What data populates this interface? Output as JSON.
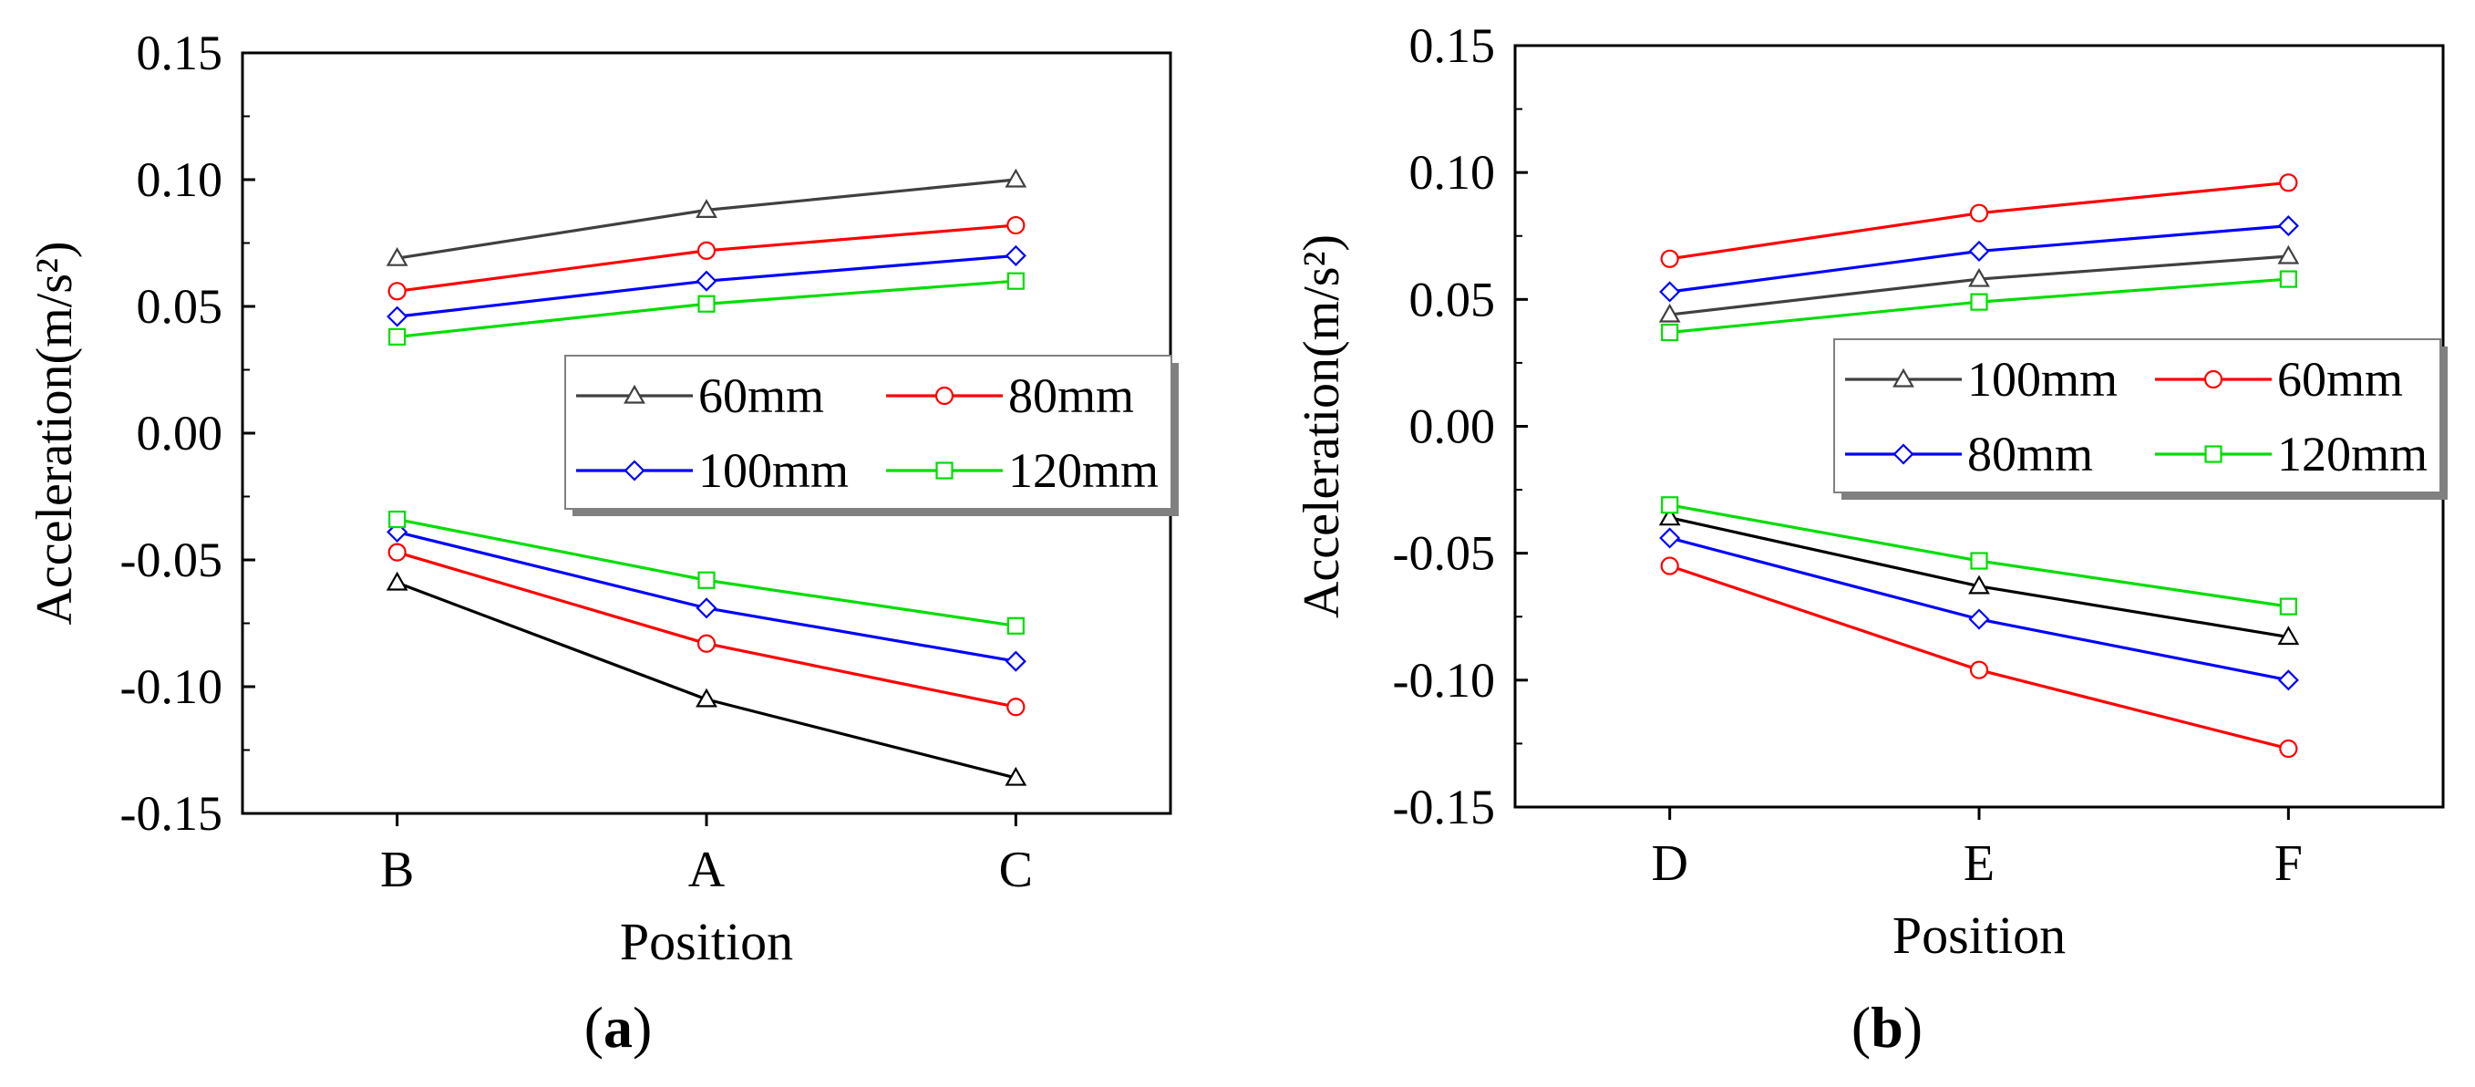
{
  "chart_data": [
    {
      "panel": "a",
      "caption_label": "a",
      "type": "line",
      "xlabel": "Position",
      "ylabel": "Acceleration(m/s²)",
      "categories": [
        "B",
        "A",
        "C"
      ],
      "ylim": [
        -0.15,
        0.15
      ],
      "yticks": [
        "0.15",
        "0.10",
        "0.05",
        "0.00",
        "-0.05",
        "-0.10",
        "-0.15"
      ],
      "legend_position": "center-right",
      "legend_order": [
        "60mm",
        "80mm",
        "100mm",
        "120mm"
      ],
      "series": [
        {
          "name": "60mm",
          "group": "positive",
          "color": "#404040",
          "marker": "triangle",
          "values": [
            0.069,
            0.088,
            0.1
          ]
        },
        {
          "name": "80mm",
          "group": "positive",
          "color": "#ff0000",
          "marker": "circle",
          "values": [
            0.056,
            0.072,
            0.082
          ]
        },
        {
          "name": "100mm",
          "group": "positive",
          "color": "#0000ff",
          "marker": "diamond",
          "values": [
            0.046,
            0.06,
            0.07
          ]
        },
        {
          "name": "120mm",
          "group": "positive",
          "color": "#00dd00",
          "marker": "square",
          "values": [
            0.038,
            0.051,
            0.06
          ]
        },
        {
          "name": "60mm",
          "group": "negative",
          "color": "#000000",
          "marker": "triangle",
          "values": [
            -0.059,
            -0.105,
            -0.136
          ]
        },
        {
          "name": "80mm",
          "group": "negative",
          "color": "#ff0000",
          "marker": "circle",
          "values": [
            -0.047,
            -0.083,
            -0.108
          ]
        },
        {
          "name": "100mm",
          "group": "negative",
          "color": "#0000ff",
          "marker": "diamond",
          "values": [
            -0.039,
            -0.069,
            -0.09
          ]
        },
        {
          "name": "120mm",
          "group": "negative",
          "color": "#00dd00",
          "marker": "square",
          "values": [
            -0.034,
            -0.058,
            -0.076
          ]
        }
      ]
    },
    {
      "panel": "b",
      "caption_label": "b",
      "type": "line",
      "xlabel": "Position",
      "ylabel": "Acceleration(m/s²)",
      "categories": [
        "D",
        "E",
        "F"
      ],
      "ylim": [
        -0.15,
        0.15
      ],
      "yticks": [
        "0.15",
        "0.10",
        "0.05",
        "0.00",
        "-0.05",
        "-0.10",
        "-0.15"
      ],
      "legend_position": "center-right",
      "legend_order": [
        "100mm",
        "60mm",
        "80mm",
        "120mm"
      ],
      "series": [
        {
          "name": "100mm",
          "group": "positive",
          "color": "#404040",
          "marker": "triangle",
          "values": [
            0.044,
            0.058,
            0.067
          ]
        },
        {
          "name": "60mm",
          "group": "positive",
          "color": "#ff0000",
          "marker": "circle",
          "values": [
            0.066,
            0.084,
            0.096
          ]
        },
        {
          "name": "80mm",
          "group": "positive",
          "color": "#0000ff",
          "marker": "diamond",
          "values": [
            0.053,
            0.069,
            0.079
          ]
        },
        {
          "name": "120mm",
          "group": "positive",
          "color": "#00dd00",
          "marker": "square",
          "values": [
            0.037,
            0.049,
            0.058
          ]
        },
        {
          "name": "100mm",
          "group": "negative",
          "color": "#000000",
          "marker": "triangle",
          "values": [
            -0.036,
            -0.063,
            -0.083
          ]
        },
        {
          "name": "60mm",
          "group": "negative",
          "color": "#ff0000",
          "marker": "circle",
          "values": [
            -0.055,
            -0.096,
            -0.127
          ]
        },
        {
          "name": "80mm",
          "group": "negative",
          "color": "#0000ff",
          "marker": "diamond",
          "values": [
            -0.044,
            -0.076,
            -0.1
          ]
        },
        {
          "name": "120mm",
          "group": "negative",
          "color": "#00dd00",
          "marker": "square",
          "values": [
            -0.031,
            -0.053,
            -0.071
          ]
        }
      ]
    }
  ]
}
